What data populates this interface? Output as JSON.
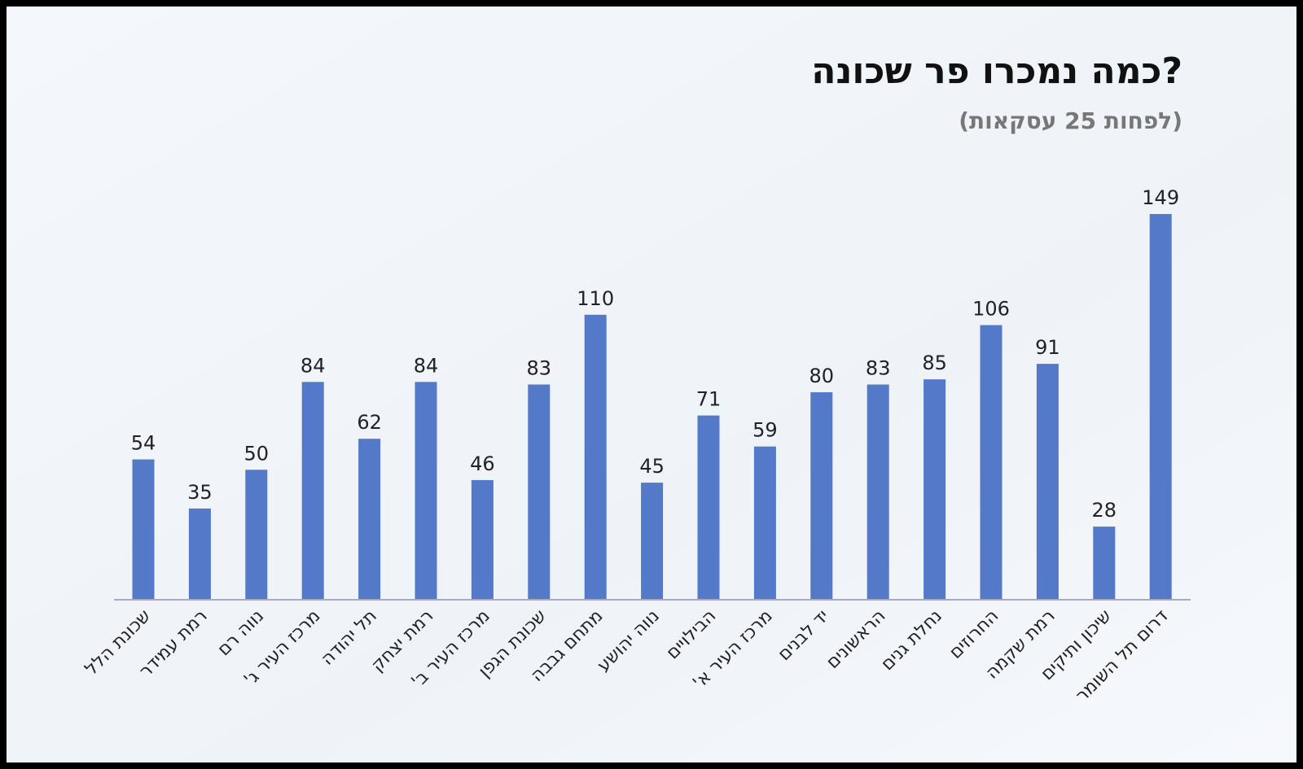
{
  "chart_data": {
    "type": "bar",
    "title": "כמה נמכרו פר שכונה?",
    "subtitle": "(לפחות 25 עסקאות)",
    "categories": [
      "שכונת הלל",
      "רמת עמידר",
      "נווה רם",
      "מרכז העיר ג'",
      "תל יהודה",
      "רמת יצחק",
      "מרכז העיר ב'",
      "שכונת הגפן",
      "מתחם גבבה",
      "נווה יהושע",
      "הבילויים",
      "מרכז העיר א'",
      "יד לבנים",
      "הראשונים",
      "נחלת גנים",
      "החרוזים",
      "רמת שקמה",
      "שיכון ותיקים",
      "דרום תל השומר"
    ],
    "values": [
      54,
      35,
      50,
      84,
      62,
      84,
      46,
      83,
      110,
      45,
      71,
      59,
      80,
      83,
      85,
      106,
      91,
      28,
      149
    ],
    "color": "#5479c9"
  }
}
